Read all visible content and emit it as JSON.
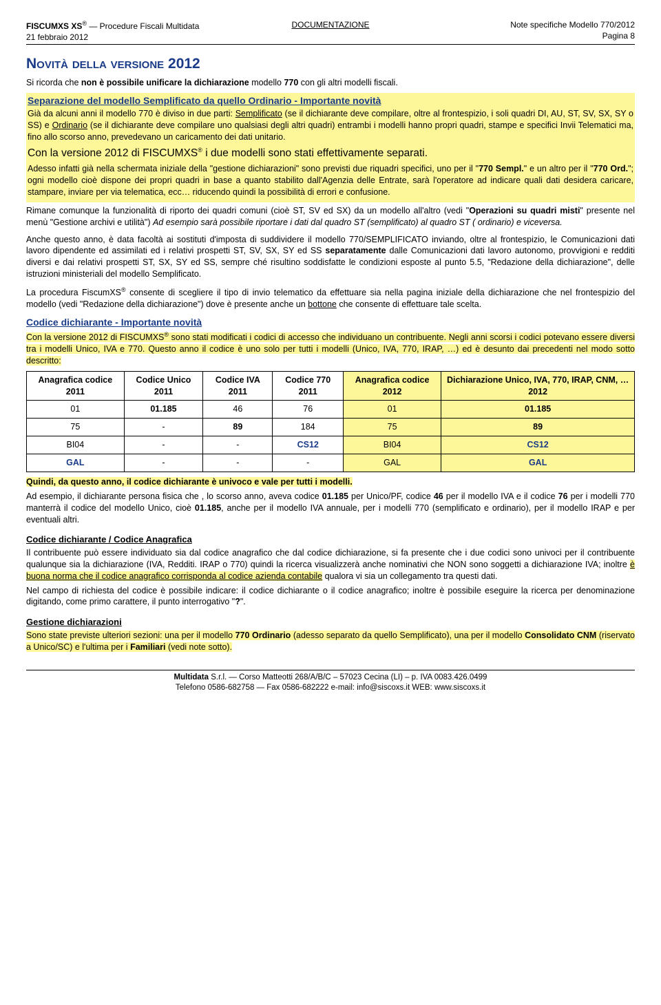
{
  "header": {
    "product_line1_a": "FISCUMXS XS",
    "product_line1_b": " — Procedure Fiscali Multidata",
    "date": "21 febbraio 2012",
    "center": "DOCUMENTAZIONE",
    "right1": "Note specifiche Modello 770/2012",
    "right2": "Pagina 8"
  },
  "title": "Novità della versione 2012",
  "intro_a": "Si ricorda che ",
  "intro_b": "non è possibile unificare la dichiarazione",
  "intro_c": " modello ",
  "intro_d": "770",
  "intro_e": " con gli altri modelli fiscali.",
  "sep_title": "Separazione del modello Semplificato da quello Ordinario  -  Importante novità",
  "sep_p1_a": "Già da alcuni anni il modello 770 è diviso in due parti: ",
  "sep_p1_b": "Semplificato",
  "sep_p1_c": " (se il dichiarante deve compilare, oltre al frontespizio, i soli quadri DI, AU, ST, SV, SX, SY o SS) e ",
  "sep_p1_d": "Ordinario",
  "sep_p1_e": " (se il dichiarante deve compilare uno qualsiasi degli altri quadri) entrambi i modelli hanno propri quadri, stampe e specifici Invii Telematici ma, fino allo scorso anno, prevedevano un caricamento dei dati unitario.",
  "sep_big_a": "Con la versione 2012 di FISCUMXS",
  "sep_big_b": " i due modelli sono stati effettivamente separati.",
  "sep_p2_a": "Adesso infatti già nella schermata iniziale della \"gestione dichiarazioni\" sono previsti due riquadri specifici, uno per il \"",
  "sep_p2_b": "770 Sempl.",
  "sep_p2_c": "\" e un altro per il \"",
  "sep_p2_d": "770 Ord.",
  "sep_p2_e": "\"; ogni modello cioè dispone dei propri quadri in base a quanto stabilito dall'Agenzia delle Entrate, sarà l'operatore ad indicare quali dati desidera caricare, stampare, inviare per via telematica, ecc… riducendo quindi la possibilità di errori e confusione.",
  "p_rimane_a": "Rimane comunque la funzionalità di riporto dei quadri comuni (cioè ST, SV ed SX) da un modello all'altro (vedi \"",
  "p_rimane_b": "Operazioni su quadri misti",
  "p_rimane_c": "\" presente nel menù \"Gestione archivi e utilità\") ",
  "p_rimane_d": "Ad esempio sarà possibile riportare i dati dal quadro ST (semplificato) al quadro ST ( ordinario) e viceversa.",
  "p_anche_a": "Anche questo anno, è data facoltà ai sostituti d'imposta di suddividere il modello 770/SEMPLIFICATO inviando, oltre al frontespizio, le Comunicazioni dati lavoro dipendente ed assimilati ed i relativi prospetti ST, SV, SX, SY ed SS ",
  "p_anche_b": "separatamente",
  "p_anche_c": " dalle Comunicazioni dati lavoro autonomo, provvigioni e redditi diversi e dai relativi prospetti ST, SX, SY ed SS, sempre ché risultino soddisfatte le condizioni esposte al punto 5.5, \"Redazione della dichiarazione\", delle istruzioni ministeriali del modello Semplificato.",
  "p_proc_a": "La procedura FiscumXS",
  "p_proc_b": " consente di scegliere il tipo di invio telematico da effettuare sia nella pagina iniziale della dichiarazione che nel frontespizio del modello (vedi \"Redazione della dichiarazione\") dove è presente anche un ",
  "p_proc_c": "bottone",
  "p_proc_d": " che consente di effettuare tale scelta.",
  "cod_title": "Codice dichiarante  -  Importante novità",
  "cod_p1_a": "Con la versione 2012 di FISCUMXS",
  "cod_p1_b": " sono stati modificati i codici di accesso che individuano un contribuente. Negli anni scorsi i codici potevano essere diversi tra i modelli Unico, IVA e 770. Questo anno il codice è uno solo per tutti i modelli (Unico, IVA, 770, IRAP, …) ed è desunto dai precedenti nel modo sotto descritto:",
  "table": {
    "headers": [
      "Anagrafica codice 2011",
      "Codice Unico 2011",
      "Codice IVA 2011",
      "Codice 770 2011",
      "Anagrafica codice 2012",
      "Dichiarazione  Unico, IVA, 770, IRAP, CNM, … 2012"
    ],
    "rows": [
      [
        "01",
        "01.185",
        "46",
        "76",
        "01",
        "01.185"
      ],
      [
        "75",
        "-",
        "89",
        "184",
        "75",
        "89"
      ],
      [
        "BI04",
        "-",
        "-",
        "CS12",
        "BI04",
        "CS12"
      ],
      [
        "GAL",
        "-",
        "-",
        "-",
        "GAL",
        "GAL"
      ]
    ]
  },
  "quindi": "Quindi, da questo anno, il codice dichiarante è univoco e vale per tutti i modelli.",
  "adesempio_a": "Ad esempio, il dichiarante persona fisica che , lo scorso anno, aveva codice ",
  "adesempio_b": "01.185",
  "adesempio_c": " per Unico/PF, codice ",
  "adesempio_d": "46",
  "adesempio_e": " per il modello IVA e il codice ",
  "adesempio_f": "76",
  "adesempio_g": " per i modelli 770 manterrà il codice del modello Unico, cioè ",
  "adesempio_h": "01.185",
  "adesempio_i": ", anche per il modello IVA annuale, per i modelli 770 (semplificato e ordinario), per il modello IRAP e per eventuali altri.",
  "coddich_title": "Codice dichiarante / Codice Anagrafica",
  "coddich_p1_a": "Il contribuente può essere individuato sia dal codice anagrafico che dal codice dichiarazione, si fa presente che i due codici sono univoci per il contribuente qualunque sia la dichiarazione (IVA, Redditi. IRAP o 770) quindi la ricerca visualizzerà anche nominativi che NON sono soggetti a dichiarazione IVA; inoltre ",
  "coddich_p1_b": "è buona norma che il codice anagrafico corrisponda al codice azienda contabile",
  "coddich_p1_c": " qualora vi sia un collegamento tra questi dati.",
  "coddich_p2_a": "Nel campo di richiesta del codice è possibile indicare: il codice dichiarante o il codice anagrafico; inoltre è possibile eseguire la ricerca per denominazione digitando, come primo carattere, il punto interrogativo \"",
  "coddich_p2_b": "?",
  "coddich_p2_c": "\".",
  "gest_title": "Gestione dichiarazioni",
  "gest_p_a": "Sono state previste ulteriori sezioni: una per il modello ",
  "gest_p_b": "770 Ordinario",
  "gest_p_c": " (adesso separato da quello Semplificato), una per il modello ",
  "gest_p_d": "Consolidato CNM",
  "gest_p_e": " (riservato a Unico/SC) e l'ultima per i ",
  "gest_p_f": "Familiari",
  "gest_p_g": " (vedi note sotto).",
  "footer": {
    "line1_a": "Multidata",
    "line1_b": " S.r.l. — Corso Matteotti 268/A/B/C – 57023 Cecina (LI) – p. IVA 0083.426.0499",
    "line2": "Telefono 0586-682758 — Fax 0586-682222 e-mail: info@siscoxs.it  WEB: www.siscoxs.it"
  }
}
